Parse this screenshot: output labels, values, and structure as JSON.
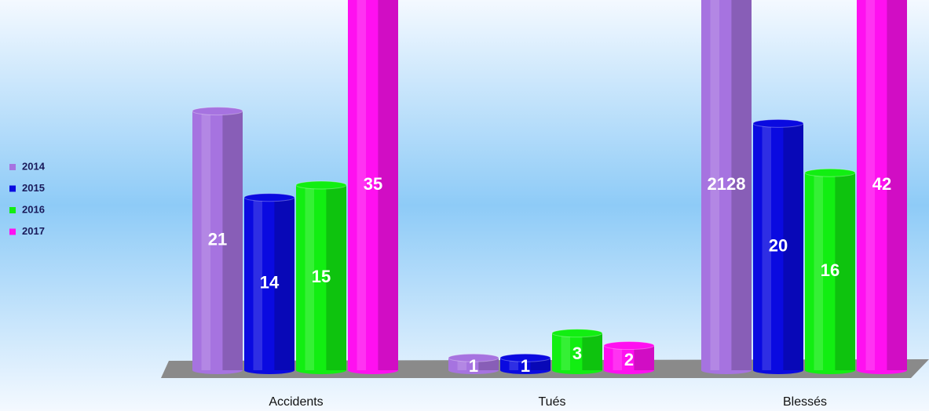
{
  "chart_data": {
    "type": "bar3d",
    "categories": [
      "Accidents",
      "Tués",
      "Blessés"
    ],
    "series": [
      {
        "name": "2014",
        "color": "#a673e0",
        "values": [
          21,
          1,
          2128
        ]
      },
      {
        "name": "2015",
        "color": "#0a0ae0",
        "values": [
          14,
          1,
          20
        ]
      },
      {
        "name": "2016",
        "color": "#12ee12",
        "values": [
          15,
          3,
          16
        ]
      },
      {
        "name": "2017",
        "color": "#ff10f0",
        "values": [
          35,
          2,
          42
        ]
      }
    ],
    "ylim": [
      0,
      30
    ],
    "legend": "left"
  }
}
